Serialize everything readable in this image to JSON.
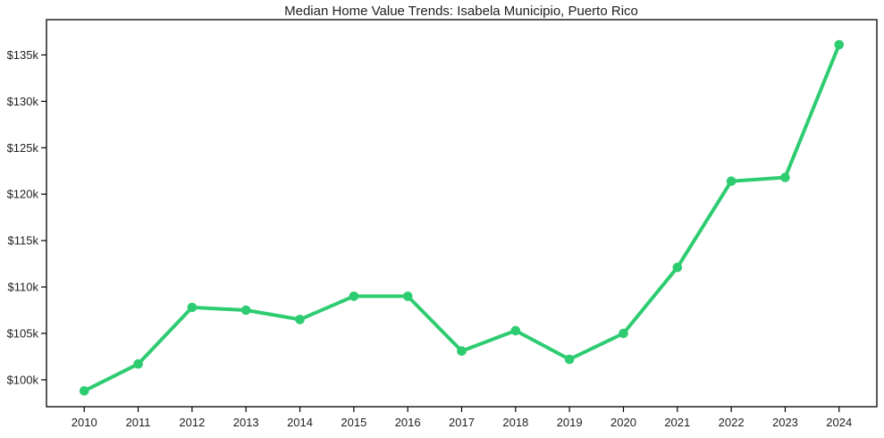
{
  "chart_data": {
    "type": "line",
    "title": "Median Home Value Trends: Isabela Municipio, Puerto Rico",
    "x": [
      2010,
      2011,
      2012,
      2013,
      2014,
      2015,
      2016,
      2017,
      2018,
      2019,
      2020,
      2021,
      2022,
      2023,
      2024
    ],
    "values": [
      98800,
      101700,
      107800,
      107500,
      106500,
      109000,
      109000,
      103100,
      105300,
      102200,
      105000,
      112100,
      121400,
      121800,
      136100
    ],
    "xtick_labels": [
      "2010",
      "2011",
      "2012",
      "2013",
      "2014",
      "2015",
      "2016",
      "2017",
      "2018",
      "2019",
      "2020",
      "2021",
      "2022",
      "2023",
      "2024"
    ],
    "yticks": [
      100000,
      105000,
      110000,
      115000,
      120000,
      125000,
      130000,
      135000
    ],
    "ytick_labels": [
      "$100k",
      "$105k",
      "$110k",
      "$115k",
      "$120k",
      "$125k",
      "$130k",
      "$135k"
    ],
    "xlabel": "",
    "ylabel": "",
    "xlim": [
      2009.3,
      2024.7
    ],
    "ylim": [
      97100,
      138800
    ],
    "grid": false,
    "legend": false,
    "marker": "circle",
    "colors": {
      "line": "#2ecc71",
      "marker": "#2ecc71",
      "text": "#1f1f1f",
      "spine": "#000000",
      "background": "#ffffff"
    }
  }
}
